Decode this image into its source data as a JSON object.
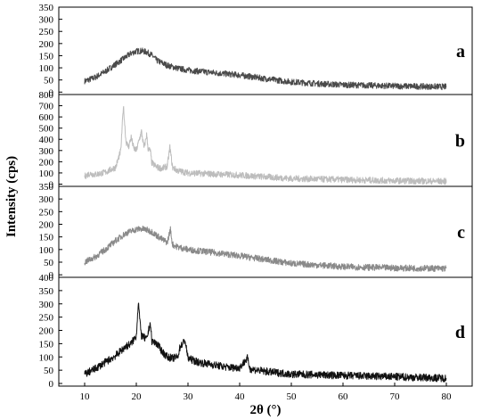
{
  "chart_data": {
    "type": "line",
    "layout": "four vertically stacked panels sharing one x axis",
    "xlabel": "2θ (°)",
    "ylabel": "Intensity (cps)",
    "xlim": [
      5,
      85
    ],
    "x_ticks": [
      10,
      20,
      30,
      40,
      50,
      60,
      70,
      80
    ],
    "grid": false,
    "legend": "none",
    "noise": "high-frequency noise on every trace",
    "panels": [
      {
        "label": "a",
        "color": "#4a4a4a",
        "ylim": [
          -10,
          350
        ],
        "y_ticks": [
          0,
          50,
          100,
          150,
          200,
          250,
          300,
          350
        ],
        "x": [
          10,
          12,
          14,
          16,
          18,
          19,
          20,
          21,
          22,
          23,
          24,
          26,
          28,
          30,
          35,
          40,
          45,
          50,
          55,
          60,
          70,
          80
        ],
        "y": [
          45,
          60,
          85,
          115,
          145,
          160,
          168,
          170,
          165,
          152,
          130,
          110,
          98,
          90,
          80,
          70,
          55,
          42,
          35,
          30,
          25,
          22
        ]
      },
      {
        "label": "b",
        "color": "#bdbdbd",
        "ylim": [
          -20,
          800
        ],
        "y_ticks": [
          0,
          100,
          200,
          300,
          400,
          500,
          600,
          700,
          800
        ],
        "x": [
          10,
          11,
          12,
          14,
          16,
          17,
          17.5,
          18,
          18.5,
          19,
          19.5,
          20,
          21,
          21.5,
          22,
          22.3,
          22.7,
          23,
          24,
          25,
          26,
          26.5,
          27,
          28,
          30,
          35,
          40,
          45,
          50,
          60,
          70,
          80
        ],
        "y": [
          70,
          95,
          85,
          105,
          150,
          300,
          700,
          380,
          330,
          420,
          320,
          300,
          470,
          320,
          440,
          310,
          300,
          190,
          150,
          140,
          160,
          330,
          150,
          120,
          100,
          90,
          80,
          65,
          50,
          40,
          30,
          25
        ]
      },
      {
        "label": "c",
        "color": "#8a8a8a",
        "ylim": [
          -10,
          350
        ],
        "y_ticks": [
          0,
          50,
          100,
          150,
          200,
          250,
          300,
          350
        ],
        "x": [
          10,
          12,
          14,
          16,
          18,
          20,
          21,
          22,
          23,
          24,
          25,
          26,
          26.6,
          27,
          28,
          30,
          35,
          40,
          45,
          50,
          60,
          70,
          80
        ],
        "y": [
          50,
          70,
          100,
          135,
          165,
          180,
          182,
          178,
          170,
          155,
          140,
          128,
          180,
          120,
          110,
          100,
          88,
          75,
          60,
          45,
          32,
          27,
          25
        ]
      },
      {
        "label": "d",
        "color": "#111111",
        "ylim": [
          -10,
          400
        ],
        "y_ticks": [
          0,
          50,
          100,
          150,
          200,
          250,
          300,
          350,
          400
        ],
        "x": [
          10,
          12,
          14,
          16,
          18,
          19,
          20,
          20.4,
          20.8,
          21,
          22,
          22.7,
          23,
          24,
          25,
          26,
          27,
          28,
          28.5,
          29,
          29.4,
          30,
          32,
          35,
          38,
          40,
          41.5,
          42,
          45,
          50,
          60,
          70,
          80
        ],
        "y": [
          35,
          55,
          80,
          105,
          140,
          150,
          180,
          310,
          210,
          180,
          165,
          230,
          160,
          150,
          120,
          100,
          95,
          100,
          140,
          150,
          165,
          95,
          80,
          70,
          60,
          60,
          95,
          55,
          45,
          35,
          30,
          25,
          20
        ]
      }
    ]
  }
}
